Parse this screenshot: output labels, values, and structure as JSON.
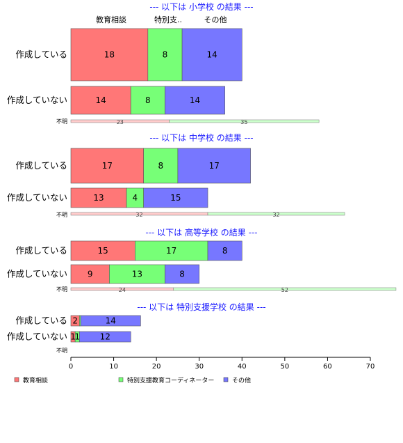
{
  "chart_data": {
    "type": "bar",
    "orientation": "horizontal",
    "stacked": true,
    "xlim": [
      0,
      70
    ],
    "x_ticks": [
      0,
      10,
      20,
      30,
      40,
      50,
      60,
      70
    ],
    "column_headers": [
      "教育相談",
      "特別支..",
      "その他"
    ],
    "legend_position": "bottom",
    "legend": [
      {
        "name": "教育相談",
        "color": "#ff7777"
      },
      {
        "name": "特別支援教育コーディネーター",
        "color": "#77ff77"
      },
      {
        "name": "その他",
        "color": "#7777ff"
      }
    ],
    "colors": {
      "series": [
        "#ff7777",
        "#77ff77",
        "#7777ff"
      ],
      "thin": [
        "#ffcccc",
        "#ccffcc"
      ],
      "title": "#1a1aff"
    },
    "sections": [
      {
        "title": "--- 以下は 小学校 の結果 ---",
        "rows": [
          {
            "label": "作成している",
            "values": [
              18,
              8,
              14
            ]
          },
          {
            "label": "作成していない",
            "values": [
              14,
              8,
              14
            ]
          }
        ],
        "unknown": {
          "label": "不明",
          "values": [
            23,
            35
          ]
        }
      },
      {
        "title": "--- 以下は 中学校 の結果 ---",
        "rows": [
          {
            "label": "作成している",
            "values": [
              17,
              8,
              17
            ]
          },
          {
            "label": "作成していない",
            "values": [
              13,
              4,
              15
            ]
          }
        ],
        "unknown": {
          "label": "不明",
          "values": [
            32,
            32
          ]
        }
      },
      {
        "title": "--- 以下は 高等学校 の結果 ---",
        "rows": [
          {
            "label": "作成している",
            "values": [
              15,
              17,
              8
            ]
          },
          {
            "label": "作成していない",
            "values": [
              9,
              13,
              8
            ]
          }
        ],
        "unknown": {
          "label": "不明",
          "values": [
            24,
            52
          ]
        }
      },
      {
        "title": "--- 以下は 特別支援学校 の結果 ---",
        "rows": [
          {
            "label": "作成している",
            "values": [
              2,
              0.3,
              14
            ]
          },
          {
            "label": "作成していない",
            "values": [
              1,
              1,
              12
            ]
          }
        ],
        "unknown": {
          "label": "不明",
          "values": []
        }
      }
    ]
  }
}
